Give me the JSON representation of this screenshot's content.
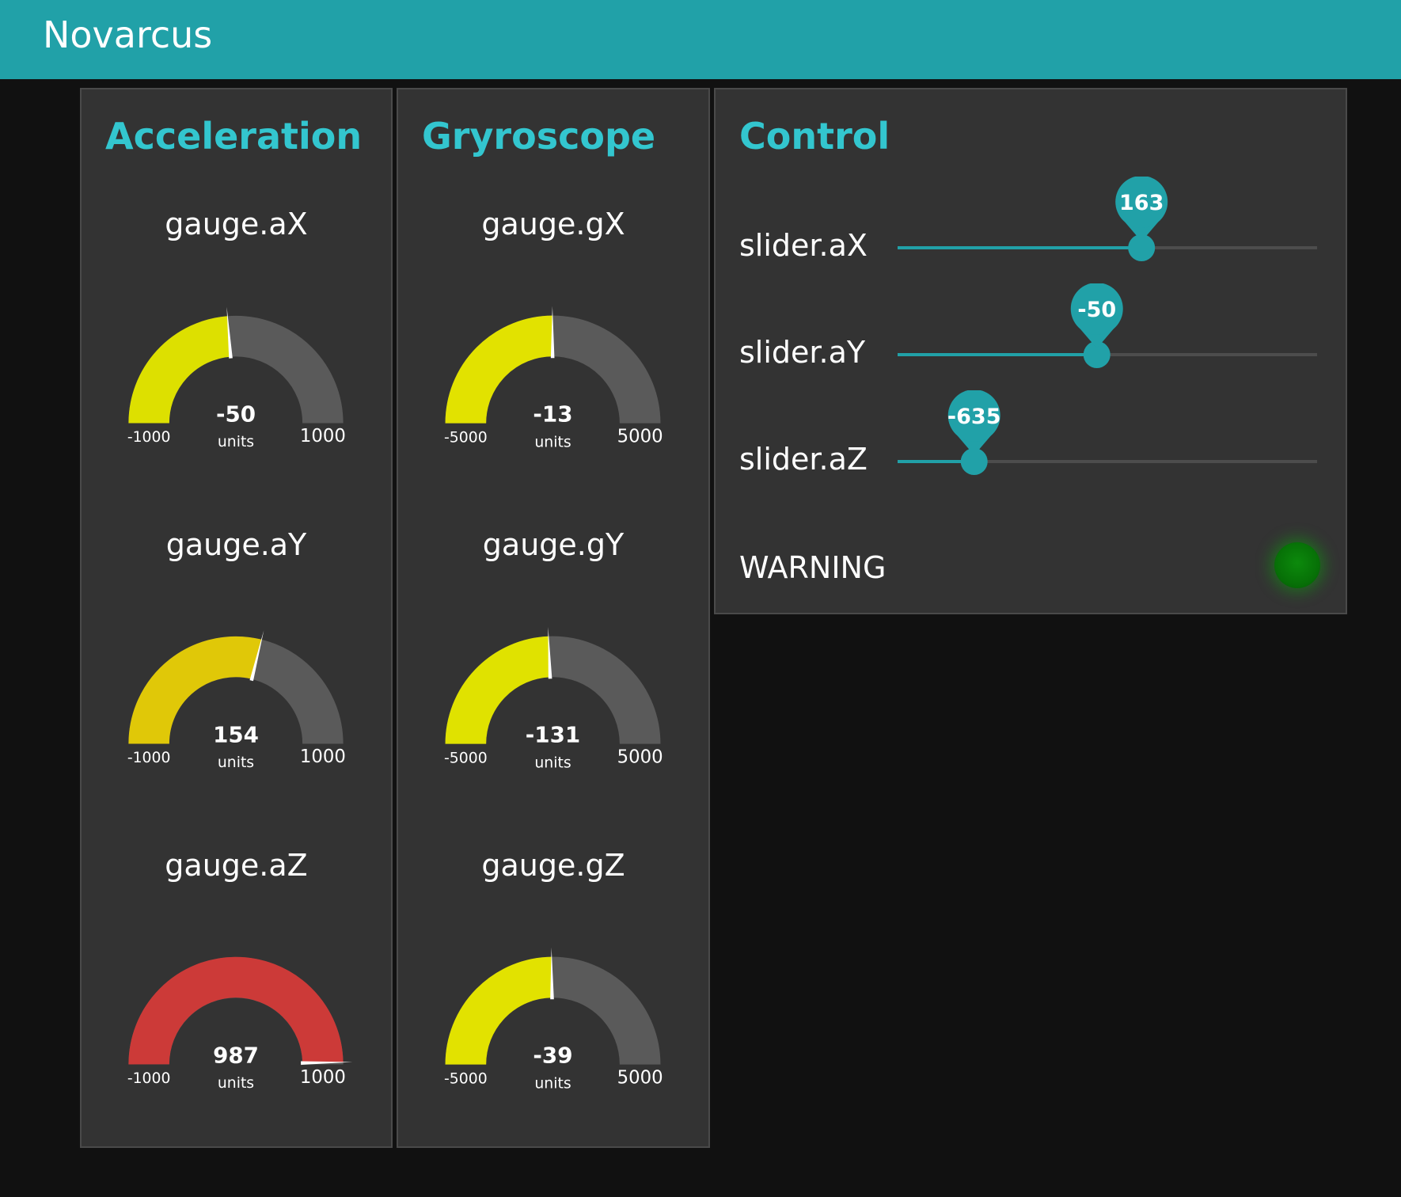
{
  "app": {
    "title": "Novarcus"
  },
  "colors": {
    "accent": "#21a1a8",
    "title": "#33c6cf",
    "panel": "#333333",
    "gauge_track": "#5a5a5a",
    "led_on": "#088808"
  },
  "panels": {
    "acceleration": {
      "title": "Acceleration",
      "gauges": [
        {
          "label": "gauge.aX",
          "value": -50,
          "value_text": "-50",
          "units": "units",
          "min": -1000,
          "max": 1000,
          "min_text": "-1000",
          "max_text": "1000",
          "color": "#dde000"
        },
        {
          "label": "gauge.aY",
          "value": 154,
          "value_text": "154",
          "units": "units",
          "min": -1000,
          "max": 1000,
          "min_text": "-1000",
          "max_text": "1000",
          "color": "#e0c808"
        },
        {
          "label": "gauge.aZ",
          "value": 987,
          "value_text": "987",
          "units": "units",
          "min": -1000,
          "max": 1000,
          "min_text": "-1000",
          "max_text": "1000",
          "color": "#cc3a38"
        }
      ]
    },
    "gyroscope": {
      "title": "Gryroscope",
      "gauges": [
        {
          "label": "gauge.gX",
          "value": -13,
          "value_text": "-13",
          "units": "units",
          "min": -5000,
          "max": 5000,
          "min_text": "-5000",
          "max_text": "5000",
          "color": "#e2e200"
        },
        {
          "label": "gauge.gY",
          "value": -131,
          "value_text": "-131",
          "units": "units",
          "min": -5000,
          "max": 5000,
          "min_text": "-5000",
          "max_text": "5000",
          "color": "#e0e200"
        },
        {
          "label": "gauge.gZ",
          "value": -39,
          "value_text": "-39",
          "units": "units",
          "min": -5000,
          "max": 5000,
          "min_text": "-5000",
          "max_text": "5000",
          "color": "#e2e200"
        }
      ]
    },
    "control": {
      "title": "Control",
      "sliders": [
        {
          "label": "slider.aX",
          "value": 163,
          "value_text": "163",
          "min": -1000,
          "max": 1000
        },
        {
          "label": "slider.aY",
          "value": -50,
          "value_text": "-50",
          "min": -1000,
          "max": 1000
        },
        {
          "label": "slider.aZ",
          "value": -635,
          "value_text": "-635",
          "min": -1000,
          "max": 1000
        }
      ],
      "warning": {
        "label": "WARNING",
        "led_state": "on",
        "led_color": "green"
      }
    }
  }
}
